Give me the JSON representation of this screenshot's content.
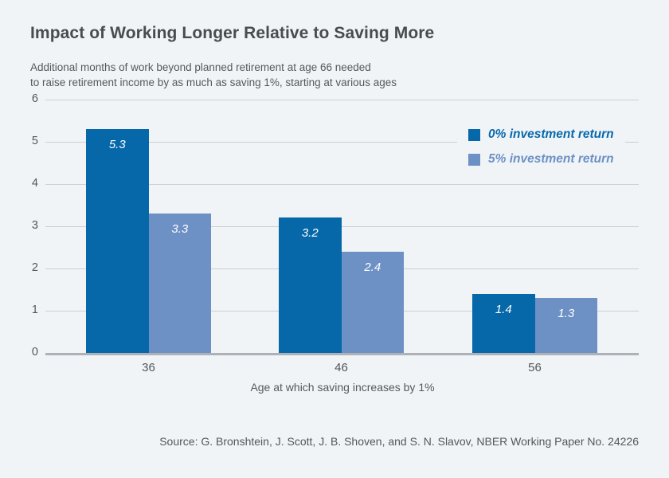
{
  "header": {
    "title": "Impact of Working Longer Relative to Saving More",
    "subtitle_line1": "Additional months of work beyond planned retirement at age 66 needed",
    "subtitle_line2": "to raise retirement income by as much as saving 1%, starting at various ages"
  },
  "chart_data": {
    "type": "bar",
    "title": "Impact of Working Longer Relative to Saving More",
    "subtitle_lines": [
      "Additional months of work beyond planned retirement at age 66 needed",
      "to raise retirement income by as much as saving 1%, starting at various ages"
    ],
    "categories": [
      "36",
      "46",
      "56"
    ],
    "series": [
      {
        "name": "0% investment return",
        "color": "#0667A9",
        "text_color": "#0768AD",
        "values": [
          5.3,
          3.2,
          1.4
        ]
      },
      {
        "name": "5% investment return",
        "color": "#6D90C5",
        "text_color": "#6D90C5",
        "values": [
          3.3,
          2.4,
          1.3
        ]
      }
    ],
    "value_labels": [
      [
        "5.3",
        "3.2",
        "1.4"
      ],
      [
        "3.3",
        "2.4",
        "1.3"
      ]
    ],
    "xlabel": "Age at which saving increases by 1%",
    "ylabel": "",
    "ylim": [
      0,
      6
    ],
    "yticks": [
      0,
      1,
      2,
      3,
      4,
      5,
      6
    ],
    "grid": true,
    "legend_position": "top-right"
  },
  "source": "Source: G. Bronshtein, J. Scott, J. B. Shoven, and S. N. Slavov, NBER Working Paper No. 24226",
  "colors": {
    "background": "#F0F4F7",
    "grid": "#CBD0D5",
    "axis_baseline": "#AEB2B6",
    "title_text": "#4A4B4D",
    "body_text": "#55575B",
    "bar_dark": "#0667A9",
    "bar_light": "#6D90C5",
    "value_label_text": "#FFFFFF"
  }
}
